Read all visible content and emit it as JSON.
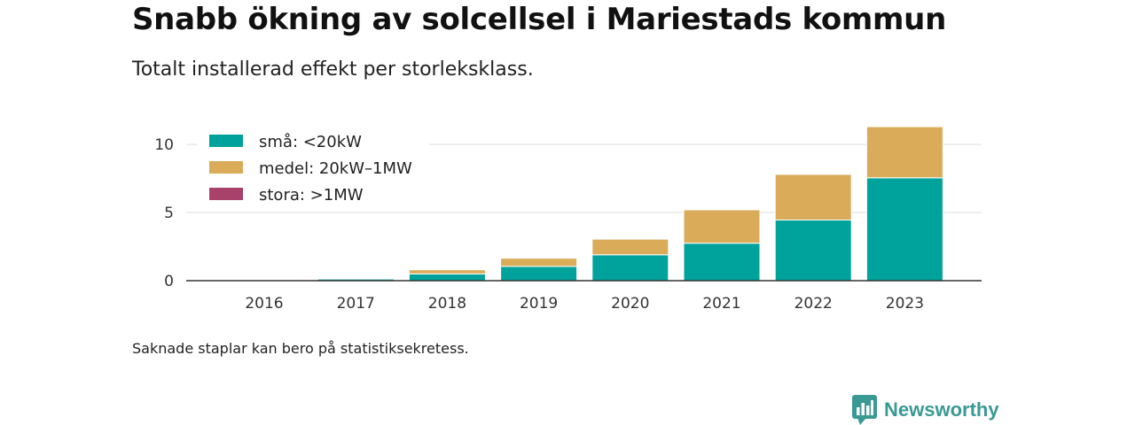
{
  "header": {
    "title": "Snabb ökning av solcellsel i Mariestads kommun",
    "subtitle": "Totalt installerad effekt per storleksklass."
  },
  "footer": {
    "note": "Saknade staplar kan bero på statistiksekretess.",
    "brand": "Newsworthy"
  },
  "icons": {
    "brand_logo": "bar-chart-speech-bubble-icon"
  },
  "chart_data": {
    "type": "bar",
    "stacked": true,
    "categories": [
      "2016",
      "2017",
      "2018",
      "2019",
      "2020",
      "2021",
      "2022",
      "2023"
    ],
    "series": [
      {
        "name": "små: <20kW",
        "color": "#00a39b",
        "values": [
          0.03,
          0.12,
          0.5,
          1.05,
          1.9,
          2.75,
          4.45,
          7.55
        ]
      },
      {
        "name": "medel: 20kW–1MW",
        "color": "#daac5a",
        "values": [
          0.0,
          0.0,
          0.3,
          0.6,
          1.15,
          2.45,
          3.35,
          3.75
        ]
      },
      {
        "name": "stora: >1MW",
        "color": "#a8426a",
        "values": [
          0,
          0,
          0,
          0,
          0,
          0,
          0,
          0
        ]
      }
    ],
    "yticks": [
      0,
      5,
      10
    ],
    "ylim": [
      0,
      11.5
    ],
    "grid": true,
    "legend": "top-left"
  }
}
